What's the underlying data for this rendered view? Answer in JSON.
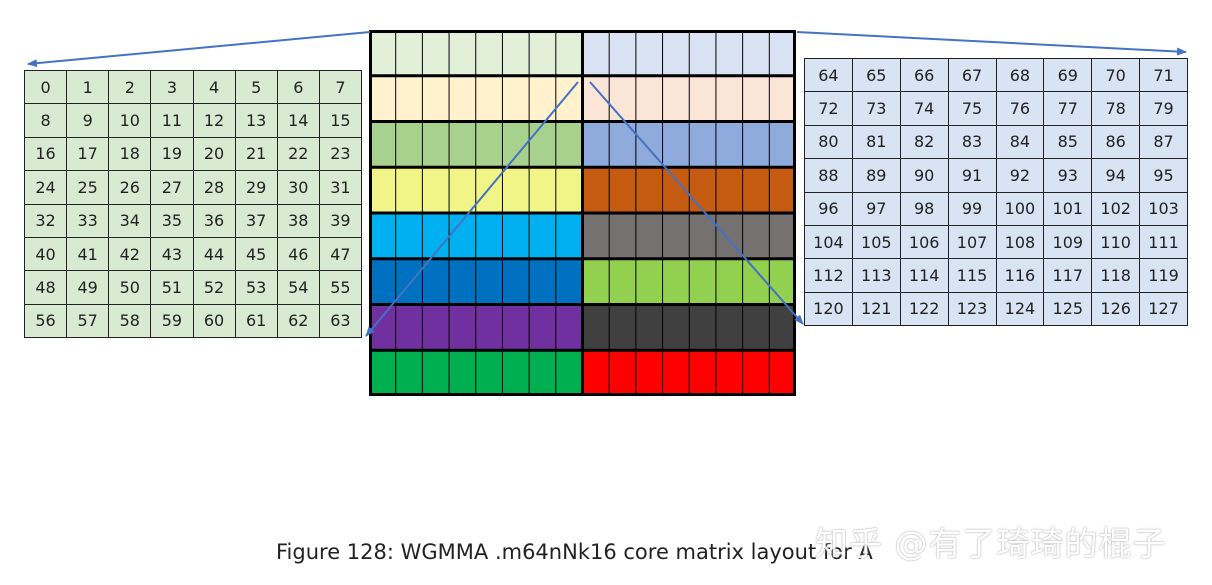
{
  "left_table": {
    "values": [
      0,
      1,
      2,
      3,
      4,
      5,
      6,
      7,
      8,
      9,
      10,
      11,
      12,
      13,
      14,
      15,
      16,
      17,
      18,
      19,
      20,
      21,
      22,
      23,
      24,
      25,
      26,
      27,
      28,
      29,
      30,
      31,
      32,
      33,
      34,
      35,
      36,
      37,
      38,
      39,
      40,
      41,
      42,
      43,
      44,
      45,
      46,
      47,
      48,
      49,
      50,
      51,
      52,
      53,
      54,
      55,
      56,
      57,
      58,
      59,
      60,
      61,
      62,
      63
    ],
    "fill": "#d9ead3"
  },
  "right_table": {
    "values": [
      64,
      65,
      66,
      67,
      68,
      69,
      70,
      71,
      72,
      73,
      74,
      75,
      76,
      77,
      78,
      79,
      80,
      81,
      82,
      83,
      84,
      85,
      86,
      87,
      88,
      89,
      90,
      91,
      92,
      93,
      94,
      95,
      96,
      97,
      98,
      99,
      100,
      101,
      102,
      103,
      104,
      105,
      106,
      107,
      108,
      109,
      110,
      111,
      112,
      113,
      114,
      115,
      116,
      117,
      118,
      119,
      120,
      121,
      122,
      123,
      124,
      125,
      126,
      127
    ],
    "fill": "#d8e3f3"
  },
  "center_matrix": {
    "rows": [
      {
        "left": "#e2efd9",
        "right": "#dae3f3"
      },
      {
        "left": "#fff2cc",
        "right": "#fbe5d6"
      },
      {
        "left": "#a9d18e",
        "right": "#8faadc"
      },
      {
        "left": "#f1f587",
        "right": "#c55a11"
      },
      {
        "left": "#00b0f0",
        "right": "#757171"
      },
      {
        "left": "#0070c0",
        "right": "#92d050"
      },
      {
        "left": "#7030a0",
        "right": "#404040"
      },
      {
        "left": "#00b050",
        "right": "#ff0000"
      }
    ],
    "cols_per_half": 8,
    "grid_color": "#000000",
    "arrow_color": "#4472c4"
  },
  "caption": "Figure 128: WGMMA .m64nNk16 core matrix layout for A",
  "watermark": "知乎 @有了琦琦的棍子"
}
